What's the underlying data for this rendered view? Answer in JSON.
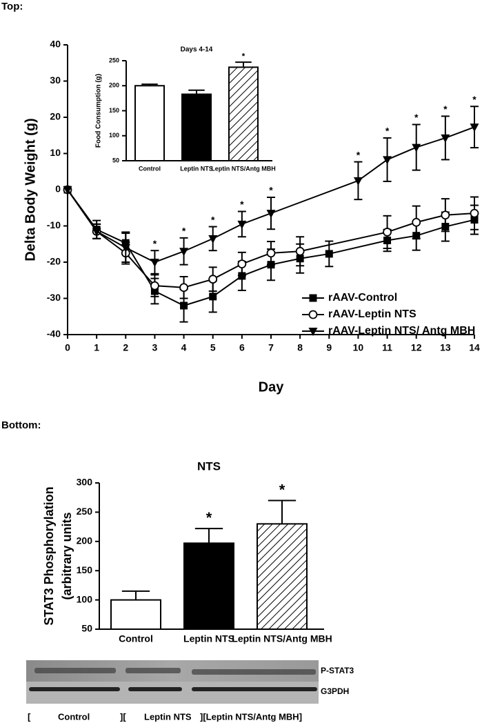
{
  "panel_labels": {
    "top": "Top:",
    "bottom": "Bottom:"
  },
  "chart_data": [
    {
      "type": "line",
      "xlabel": "Day",
      "ylabel": "Delta Body Weight (g)",
      "xlim": [
        0,
        14
      ],
      "xticks": [
        0,
        1,
        2,
        3,
        4,
        5,
        6,
        7,
        8,
        9,
        10,
        11,
        12,
        13,
        14
      ],
      "ylim": [
        -40,
        40
      ],
      "yticks": [
        -40,
        -30,
        -20,
        -10,
        0,
        10,
        20,
        30,
        40
      ],
      "legend": "lower right",
      "series": [
        {
          "name": "rAAV-Control",
          "color": "#000000",
          "marker": "square",
          "x": [
            0,
            1,
            2,
            3,
            4,
            5,
            6,
            7,
            8,
            9,
            11,
            12,
            13,
            14
          ],
          "values": [
            0,
            -11,
            -14.7,
            -28,
            -32,
            -29.5,
            -23.8,
            -20.7,
            -19,
            -17.7,
            -14,
            -12.7,
            -10.2,
            -8.3
          ],
          "errors": [
            0,
            2.5,
            3,
            3.5,
            4.5,
            4.3,
            4,
            4.3,
            4,
            3.5,
            3,
            4,
            4,
            4
          ]
        },
        {
          "name": "rAAV-Leptin NTS",
          "color": "#000000",
          "marker": "circle",
          "x": [
            0,
            1,
            2,
            3,
            4,
            5,
            6,
            7,
            8,
            11,
            12,
            13,
            14
          ],
          "values": [
            0,
            -11.5,
            -17.5,
            -26.5,
            -27,
            -24.7,
            -20.5,
            -17.5,
            -17,
            -11.7,
            -9,
            -7,
            -6.5
          ],
          "errors": [
            0,
            2,
            3,
            3,
            3,
            3.3,
            3.2,
            3.2,
            4,
            4.5,
            4.5,
            4.5,
            4.5
          ]
        },
        {
          "name": "rAAV-Leptin NTS/ Antg MBH",
          "color": "#000000",
          "marker": "triangle-down",
          "x": [
            0,
            1,
            2,
            3,
            4,
            5,
            6,
            7,
            10,
            11,
            12,
            13,
            14
          ],
          "values": [
            0,
            -11.5,
            -16,
            -20,
            -17,
            -13.5,
            -9.5,
            -6.5,
            2.5,
            8.3,
            11.7,
            14.3,
            17.3
          ],
          "errors": [
            0,
            2,
            4,
            3.2,
            3.7,
            3.3,
            3.5,
            4.4,
            5.2,
            6,
            6.3,
            6,
            5.7
          ],
          "point_labels": [
            null,
            null,
            null,
            "*",
            "*",
            "*",
            "*",
            "*",
            "*",
            "*",
            "*",
            "*",
            "*"
          ]
        }
      ]
    },
    {
      "type": "bar",
      "title": "Days 4-14",
      "ylabel": "Food Consumption (g)",
      "categories": [
        "Control",
        "Leptin NTS",
        "Leptin NTS/Antg MBH"
      ],
      "values": [
        200,
        183,
        237
      ],
      "errors": [
        3,
        8,
        10
      ],
      "fills": [
        "#ffffff",
        "#000000",
        "hatch"
      ],
      "annotations": [
        null,
        null,
        "*"
      ],
      "ylim": [
        50,
        250
      ],
      "yticks": [
        50,
        100,
        150,
        200,
        250
      ]
    },
    {
      "type": "bar",
      "title": "NTS",
      "ylabel": [
        "STAT3 Phosphorylation",
        "(arbitrary units"
      ],
      "categories": [
        "Control",
        "Leptin NTS",
        "Leptin NTS/Antg MBH"
      ],
      "values": [
        100,
        197,
        230
      ],
      "errors": [
        15,
        25,
        40
      ],
      "fills": [
        "#ffffff",
        "#000000",
        "hatch"
      ],
      "annotations": [
        null,
        "*",
        "*"
      ],
      "ylim": [
        50,
        300
      ],
      "yticks": [
        50,
        100,
        150,
        200,
        250,
        300
      ]
    }
  ],
  "blot": {
    "bands": [
      "P-STAT3",
      "G3PDH"
    ],
    "lanes": [
      "[",
      "Control",
      "][",
      "Leptin NTS",
      "][Leptin NTS/Antg MBH]"
    ]
  }
}
